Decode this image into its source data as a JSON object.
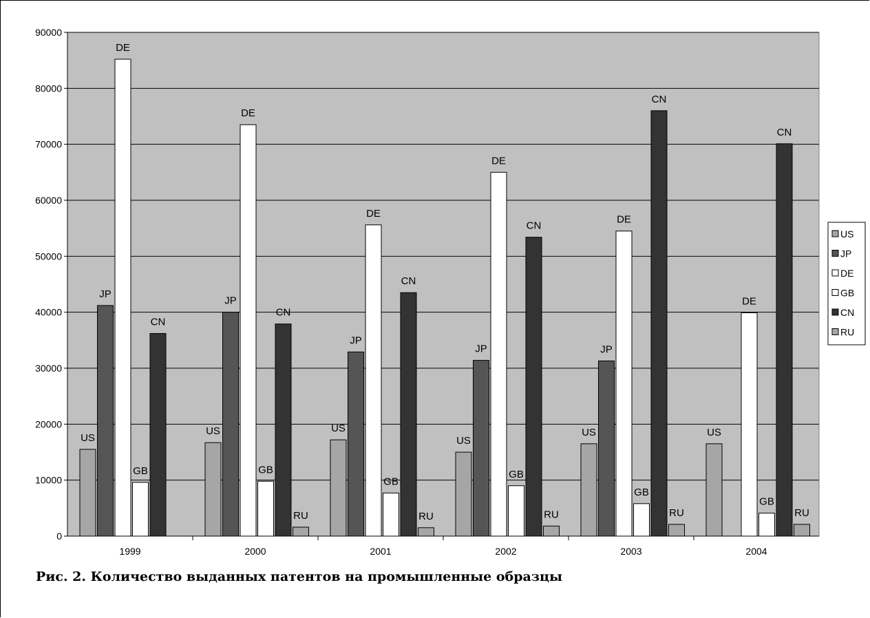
{
  "caption": "Рис. 2. Количество выданных патентов на промышленные образцы",
  "colors": {
    "plot_bg": "#c0c0c0",
    "US": "#a6a6a6",
    "JP": "#555555",
    "DE": "#ffffff",
    "GB": "#ffffff",
    "CN": "#333333",
    "RU": "#a6a6a6"
  },
  "chart_data": {
    "type": "bar",
    "categories": [
      "1999",
      "2000",
      "2001",
      "2002",
      "2003",
      "2004"
    ],
    "ylim": [
      0,
      90000
    ],
    "yticks": [
      "0",
      "10000",
      "20000",
      "30000",
      "40000",
      "50000",
      "60000",
      "70000",
      "80000",
      "90000"
    ],
    "grid": true,
    "legend_position": "right",
    "series": [
      {
        "name": "US",
        "label": "US",
        "values": [
          15500,
          16700,
          17200,
          15000,
          16500,
          16500
        ]
      },
      {
        "name": "JP",
        "label": "JP",
        "values": [
          41200,
          40000,
          32900,
          31400,
          31300,
          null
        ]
      },
      {
        "name": "DE",
        "label": "DE",
        "values": [
          85200,
          73500,
          55600,
          65000,
          54500,
          39900
        ]
      },
      {
        "name": "GB",
        "label": "GB",
        "values": [
          9600,
          9800,
          7700,
          9000,
          5800,
          4100
        ]
      },
      {
        "name": "CN",
        "label": "CN",
        "values": [
          36200,
          37900,
          43500,
          53400,
          76000,
          70100
        ]
      },
      {
        "name": "RU",
        "label": "RU",
        "values": [
          null,
          1600,
          1500,
          1800,
          2100,
          2100
        ]
      }
    ]
  }
}
